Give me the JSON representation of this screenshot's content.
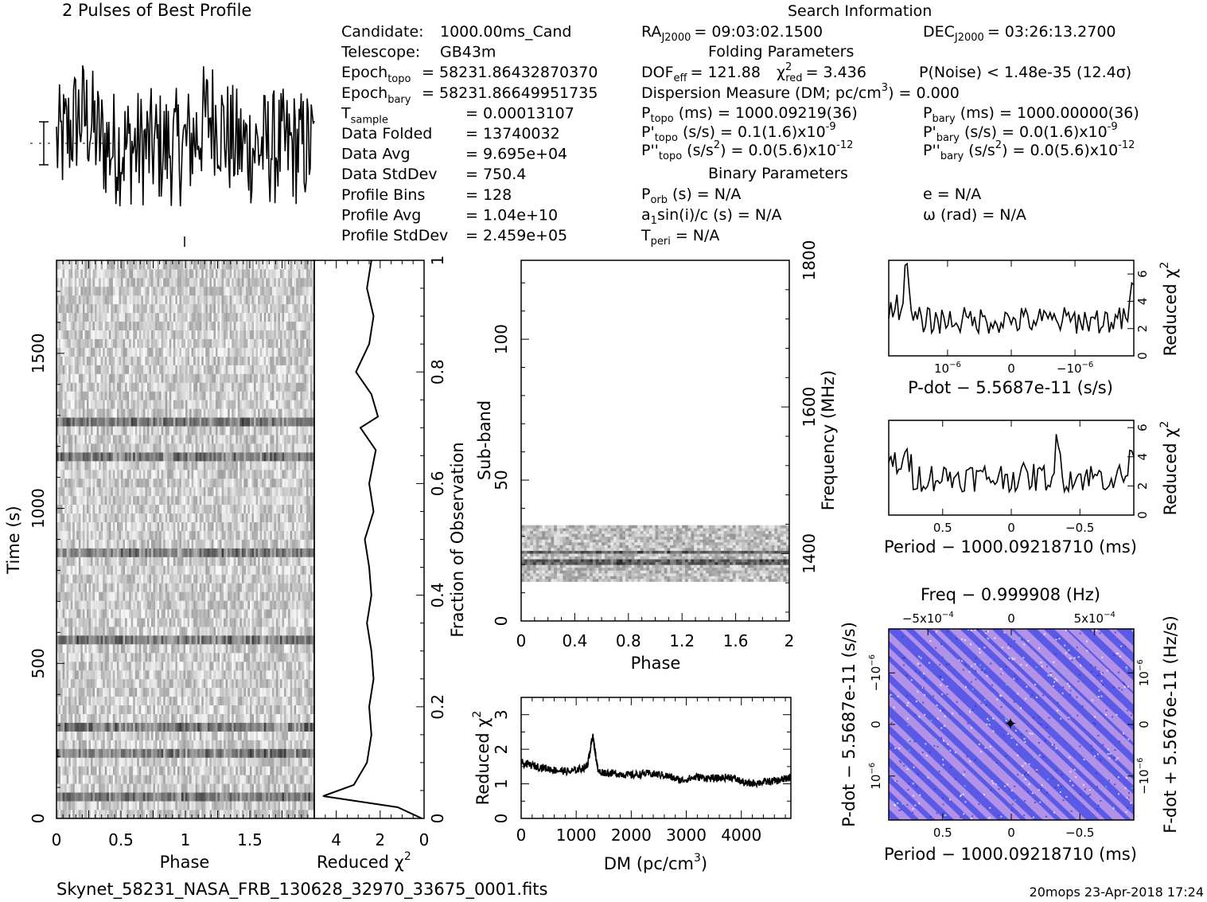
{
  "titles": {
    "profile": "2 Pulses of Best Profile",
    "search": "Search Information",
    "folding": "Folding Parameters",
    "binary": "Binary Parameters"
  },
  "info_left": [
    [
      "Candidate:",
      "",
      "1000.00ms_Cand"
    ],
    [
      "Telescope:",
      "",
      "GB43m"
    ],
    [
      "Epoch",
      "topo",
      "= 58231.86432870370"
    ],
    [
      "Epoch",
      "bary",
      "= 58231.86649951735"
    ],
    [
      "T",
      "sample",
      "=   0.00013107"
    ],
    [
      "Data Folded",
      "",
      "=   13740032"
    ],
    [
      "Data Avg",
      "",
      "=   9.695e+04"
    ],
    [
      "Data StdDev",
      "",
      "=   750.4"
    ],
    [
      "Profile Bins",
      "",
      "=   128"
    ],
    [
      "Profile Avg",
      "",
      "=   1.04e+10"
    ],
    [
      "Profile StdDev",
      "",
      "=   2.459e+05"
    ]
  ],
  "search": {
    "ra": "RA",
    "ra_sub": "J2000",
    "ra_val": "= 09:03:02.1500",
    "dec": "DEC",
    "dec_sub": "J2000",
    "dec_val": "= 03:26:13.2700"
  },
  "folding": {
    "dof": "DOF",
    "dof_sub": "eff",
    "dof_val": "= 121.88",
    "chi": "χ",
    "chi_sup": "2",
    "chi_sub": "red",
    "chi_val": "= 3.436",
    "noise": "P(Noise) < 1.48e-35   (12.4σ)",
    "dm_line_a": "Dispersion Measure (DM; pc/cm",
    "dm_line_sup": "3",
    "dm_line_b": ") = 0.000",
    "ptopo": "P",
    "ptopo_sub": "topo",
    "ptopo_val": "(ms) =   1000.09219(36)",
    "pbary": "P",
    "pbary_sub": "bary",
    "pbary_val": "(ms) =   1000.00000(36)",
    "pdtopo": "P'",
    "pdtopo_sub": "topo",
    "pdtopo_val": "(s/s) =   0.1(1.6)x10",
    "pdtopo_exp": "-9",
    "pdbary": "P'",
    "pdbary_sub": "bary",
    "pdbary_val": "(s/s) = 0.0(1.6)x10",
    "pdbary_exp": "-9",
    "pddtopo": "P''",
    "pddtopo_sub": "topo",
    "pddtopo_val": "(s/s",
    "pddtopo_sup": "2",
    "pddtopo_val2": ") = 0.0(5.6)x10",
    "pddtopo_exp": "-12",
    "pddbary": "P''",
    "pddbary_sub": "bary",
    "pddbary_val": "(s/s",
    "pddbary_sup": "2",
    "pddbary_val2": ") = 0.0(5.6)x10",
    "pddbary_exp": "-12"
  },
  "binary": {
    "porb": "P",
    "porb_sub": "orb",
    "porb_val": "(s) = N/A",
    "e": "e = N/A",
    "asini_a": "a",
    "asini_sub": "1",
    "asini_b": "sin(i)/c (s) = N/A",
    "omega": "ω (rad) = N/A",
    "tperi": "T",
    "tperi_sub": "peri",
    "tperi_val": "= N/A"
  },
  "axes": {
    "time": {
      "label": "Time (s)",
      "ticks": [
        "0",
        "500",
        "1000",
        "1500"
      ]
    },
    "phase": {
      "label": "Phase",
      "ticks": [
        "0",
        "0.5",
        "1",
        "1.5"
      ]
    },
    "redchi": {
      "label": "Reduced χ",
      "sup": "2",
      "ticks": [
        "4",
        "2",
        "0"
      ]
    },
    "fraction": {
      "label": "Fraction of Observation",
      "ticks": [
        "0",
        "0.2",
        "0.4",
        "0.6",
        "0.8",
        "1"
      ]
    },
    "subband": {
      "label": "Sub-band",
      "ticks": [
        "0",
        "50",
        "100"
      ]
    },
    "subphase": {
      "label": "Phase",
      "ticks": [
        "0",
        "0.4",
        "0.8",
        "1.2",
        "1.6",
        "2"
      ]
    },
    "freq": {
      "label": "Frequency (MHz)",
      "ticks": [
        "1400",
        "1600",
        "1800"
      ]
    },
    "dm": {
      "label": "DM (pc/cm",
      "sup": "3",
      "close": ")",
      "ticks": [
        "0",
        "1000",
        "2000",
        "3000",
        "4000"
      ]
    },
    "dm_y": {
      "label": "Reduced χ",
      "sup": "2",
      "ticks": [
        "0",
        "1",
        "2",
        "3"
      ]
    },
    "pdot": {
      "label": "P-dot − 5.5687e-11 (s/s)",
      "ticks": [
        "10",
        "0",
        "−10"
      ],
      "tick_exp": "−6",
      "y_label": "Reduced χ",
      "y_sup": "2",
      "y_ticks": [
        "0",
        "2",
        "4",
        "6"
      ]
    },
    "period": {
      "label": "Period − 1000.09218710 (ms)",
      "ticks": [
        "0.5",
        "0",
        "−0.5"
      ],
      "y_label": "Reduced χ",
      "y_sup": "2",
      "y_ticks": [
        "0",
        "2",
        "4",
        "6"
      ]
    },
    "pp": {
      "freq_label": "Freq − 0.999908 (Hz)",
      "freq_ticks": [
        "−5x10",
        "0",
        "5x10"
      ],
      "freq_exp": "−4",
      "left_label": "P-dot − 5.5687e-11 (s/s)",
      "left_ticks": [
        "−10",
        "0",
        "10"
      ],
      "left_exp": "−6",
      "right_label": "F-dot + 5.5676e-11 (Hz/s)",
      "right_ticks": [
        "10",
        "0",
        "−10"
      ],
      "right_exp": "−6",
      "bottom_label": "Period − 1000.09218710 (ms)",
      "bottom_ticks": [
        "0.5",
        "0",
        "−0.5"
      ]
    }
  },
  "footer": {
    "filename": "Skynet_58231_NASA_FRB_130628_32970_33675_0001.fits",
    "stamp": "20mops 23-Apr-2018 17:24"
  },
  "colors": {
    "ink": "#000000",
    "pp_base": "#5a5ae6",
    "pp_light": "#c8a0e6",
    "pp_cyan": "#40e0e0"
  },
  "chart_data": [
    {
      "type": "line",
      "title": "2 Pulses of Best Profile",
      "xlabel": "",
      "ylabel": "",
      "xlim": [
        0,
        2
      ],
      "bins": 128,
      "periods_shown": 2,
      "note_values": "noise-like profile, no clear pulse"
    },
    {
      "type": "heatmap",
      "xlabel": "Phase",
      "ylabel": "Time (s)",
      "xlim": [
        0,
        2
      ],
      "ylim": [
        0,
        1800
      ],
      "dark_rows_time_s": [
        60,
        220,
        300,
        590,
        870,
        1180,
        1270
      ]
    },
    {
      "type": "line",
      "xlabel": "Reduced χ2",
      "ylabel": "Fraction of Observation",
      "xlim": [
        5,
        0
      ],
      "ylim": [
        0,
        1
      ],
      "x": [
        0.1,
        1.2,
        4.6,
        3.2,
        2.6,
        2.4,
        2.5,
        2.3,
        2.4,
        2.6,
        2.4,
        2.5,
        2.7,
        2.3,
        2.5,
        2.2,
        2.9,
        2.1,
        2.4,
        3.1,
        2.5,
        2.3,
        2.6,
        2.4
      ],
      "y": [
        0.0,
        0.02,
        0.04,
        0.06,
        0.1,
        0.15,
        0.2,
        0.25,
        0.3,
        0.35,
        0.4,
        0.45,
        0.5,
        0.55,
        0.6,
        0.66,
        0.7,
        0.72,
        0.76,
        0.8,
        0.85,
        0.9,
        0.95,
        1.0
      ]
    },
    {
      "type": "heatmap",
      "xlabel": "Phase",
      "ylabel": "Sub-band",
      "y2label": "Frequency (MHz)",
      "xlim": [
        0,
        2
      ],
      "ylim": [
        0,
        128
      ],
      "y2lim": [
        1308,
        1800
      ],
      "filled_subbands": [
        14,
        34
      ],
      "dark_subbands": [
        20,
        24
      ]
    },
    {
      "type": "line",
      "xlabel": "DM (pc/cm3)",
      "ylabel": "Reduced χ2",
      "xlim": [
        0,
        4900
      ],
      "ylim": [
        0,
        3.5
      ],
      "x": [
        0,
        300,
        600,
        900,
        1200,
        1300,
        1400,
        1700,
        2000,
        2300,
        2600,
        2900,
        3200,
        3500,
        3800,
        4100,
        4400,
        4700,
        4900
      ],
      "y": [
        1.6,
        1.5,
        1.4,
        1.35,
        1.5,
        2.4,
        1.35,
        1.3,
        1.25,
        1.3,
        1.25,
        1.1,
        1.2,
        1.15,
        1.2,
        1.0,
        1.05,
        1.1,
        1.2
      ]
    },
    {
      "type": "line",
      "xlabel": "P-dot − 5.5687e-11 (s/s)",
      "ylabel": "Reduced χ2",
      "xlim": [
        2.2e-06,
        -2e-06
      ],
      "ylim": [
        0,
        7
      ],
      "note_values": "peak near 6 at about 1.8e-6, otherwise 2-4"
    },
    {
      "type": "line",
      "xlabel": "Period − 1000.09218710 (ms)",
      "ylabel": "Reduced χ2",
      "xlim": [
        0.9,
        -0.85
      ],
      "ylim": [
        0,
        6.5
      ],
      "note_values": "peak near 6 at about -0.35, otherwise 2-4"
    },
    {
      "type": "heatmap",
      "xlabel": "Period − 1000.09218710 (ms)",
      "ylabel": "P-dot − 5.5687e-11 (s/s)",
      "x2label": "Freq − 0.999908 (Hz)",
      "y2label": "F-dot + 5.5676e-11 (Hz/s)",
      "xlim": [
        0.9,
        -0.85
      ],
      "best_point": [
        0,
        0
      ]
    }
  ]
}
